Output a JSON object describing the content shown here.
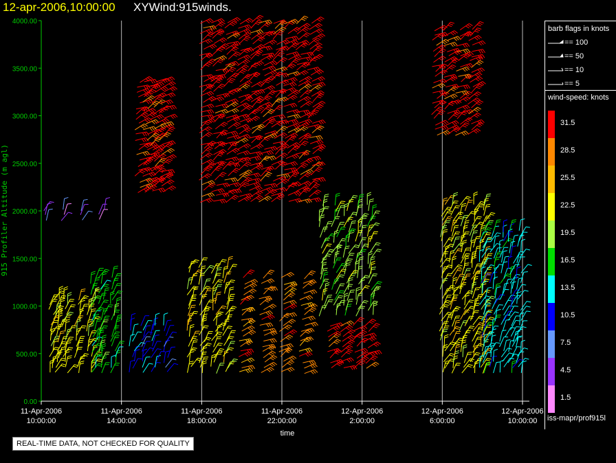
{
  "title": {
    "date": "12-apr-2006,10:00:00",
    "name": "XYWind:915winds."
  },
  "notice": "REAL-TIME DATA, NOT CHECKED FOR QUALITY",
  "footer_path": "iss-mapr/prof915l",
  "barb_legend": {
    "heading": "barb flags in knots",
    "items": [
      "== 100",
      "== 50",
      "== 10",
      "== 5"
    ]
  },
  "speed_legend": {
    "heading": "wind-speed: knots",
    "levels": [
      {
        "label": "31.5",
        "color": "#ff0000"
      },
      {
        "label": "28.5",
        "color": "#ff8800"
      },
      {
        "label": "25.5",
        "color": "#ffbb00"
      },
      {
        "label": "22.5",
        "color": "#ffff00"
      },
      {
        "label": "19.5",
        "color": "#aaff44"
      },
      {
        "label": "16.5",
        "color": "#00dd00"
      },
      {
        "label": "13.5",
        "color": "#00ffff"
      },
      {
        "label": "10.5",
        "color": "#0000ff"
      },
      {
        "label": "7.5",
        "color": "#6699ff"
      },
      {
        "label": "4.5",
        "color": "#9933ff"
      },
      {
        "label": "1.5",
        "color": "#ff88ff"
      }
    ]
  },
  "chart_data": {
    "type": "scatter",
    "title": "XYWind:915winds.",
    "xlabel": "time",
    "ylabel": "915 Profiler Altitude (m agl)",
    "ylim": [
      0,
      4000
    ],
    "xlim": [
      "11-Apr-2006 10:00:00",
      "12-Apr-2006 10:00:00"
    ],
    "grid": "vertical lines at x ticks",
    "x_ticks": [
      {
        "date": "11-Apr-2006",
        "time": "10:00:00"
      },
      {
        "date": "11-Apr-2006",
        "time": "14:00:00"
      },
      {
        "date": "11-Apr-2006",
        "time": "18:00:00"
      },
      {
        "date": "11-Apr-2006",
        "time": "22:00:00"
      },
      {
        "date": "12-Apr-2006",
        "time": "2:00:00"
      },
      {
        "date": "12-Apr-2006",
        "time": "6:00:00"
      },
      {
        "date": "12-Apr-2006",
        "time": "10:00:00"
      }
    ],
    "y_ticks": [
      "0.00",
      "500.00",
      "1000.00",
      "1500.00",
      "2000.00",
      "2500.00",
      "3000.00",
      "3500.00",
      "4000.00"
    ],
    "series": [
      {
        "time_hours": [
          0.5,
          0.8,
          1.2,
          1.8,
          2.4
        ],
        "alt_range": [
          300,
          1100
        ],
        "speed": 22.5
      },
      {
        "time_hours": [
          0.2,
          1.0,
          2.0,
          3.0
        ],
        "alt_range": [
          1900,
          2050
        ],
        "speed": 4.5
      },
      {
        "time_hours": [
          2.6,
          3.0,
          3.6
        ],
        "alt_range": [
          300,
          1300
        ],
        "speed": 16.5
      },
      {
        "time_hours": [
          4.5,
          5.0,
          5.6,
          6.2
        ],
        "alt_range": [
          300,
          800
        ],
        "speed": 10.5
      },
      {
        "time_hours": [
          4.8,
          5.2,
          5.6,
          6.0
        ],
        "alt_range": [
          2200,
          3400
        ],
        "speed": 31.5
      },
      {
        "time_hours": [
          7.4,
          8.0,
          8.6,
          9.2
        ],
        "alt_range": [
          300,
          1400
        ],
        "speed": 22.5
      },
      {
        "time_hours": [
          8.0,
          8.6,
          9.2,
          9.8,
          10.4,
          11.0,
          11.6,
          12.2,
          12.8,
          13.4
        ],
        "alt_range": [
          2100,
          4000
        ],
        "speed": 31.5
      },
      {
        "time_hours": [
          10.0,
          11.0,
          12.0,
          13.0
        ],
        "alt_range": [
          300,
          1300
        ],
        "speed": 28.5
      },
      {
        "time_hours": [
          14.0,
          14.6,
          15.2,
          15.8,
          16.4
        ],
        "alt_range": [
          900,
          2100
        ],
        "speed": 19.5
      },
      {
        "time_hours": [
          14.4,
          15.0,
          15.6,
          16.2
        ],
        "alt_range": [
          350,
          800
        ],
        "speed": 31.5
      },
      {
        "time_hours": [
          19.6,
          20.2,
          20.8,
          21.4
        ],
        "alt_range": [
          2800,
          3900
        ],
        "speed": 31.5
      },
      {
        "time_hours": [
          20.0,
          20.5,
          21.0,
          21.5,
          22.0
        ],
        "alt_range": [
          300,
          2100
        ],
        "speed": 22.5
      },
      {
        "time_hours": [
          22.0,
          22.5,
          23.0,
          23.4,
          23.8
        ],
        "alt_range": [
          300,
          1800
        ],
        "speed": 13.5
      }
    ]
  }
}
